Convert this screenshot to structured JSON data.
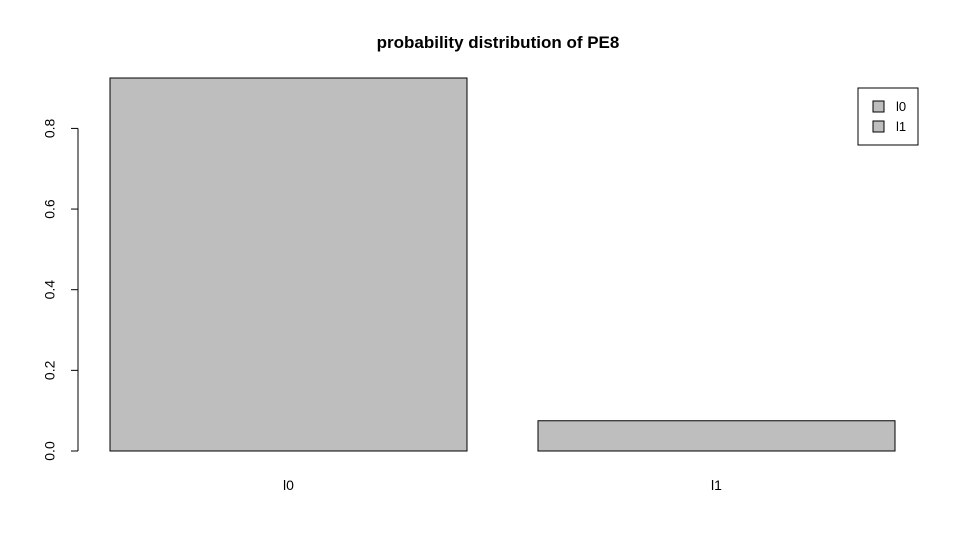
{
  "chart_data": {
    "type": "bar",
    "title": "probability distribution of  PE8",
    "xlabel": "",
    "ylabel": "",
    "categories": [
      "l0",
      "l1"
    ],
    "values": [
      0.925,
      0.075
    ],
    "ylim": [
      0,
      0.925
    ],
    "yticks": [
      "0.0",
      "0.2",
      "0.4",
      "0.6",
      "0.8"
    ],
    "bar_color": "#bebebe",
    "grid": false,
    "legend": {
      "position": "top-right",
      "entries": [
        "l0",
        "l1"
      ]
    }
  }
}
